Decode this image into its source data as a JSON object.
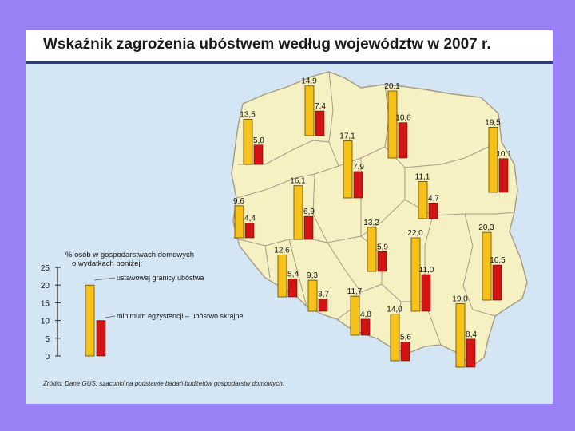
{
  "title": "Wskaźnik zagrożenia ubóstwem według województw w 2007 r.",
  "source": "Źródło: Dane GUS; szacunki na podstawie badań budżetów gospodarstw domowych.",
  "colors": {
    "background": "#9a80f5",
    "panel": "#d4e6f3",
    "map_fill": "#f6f1c2",
    "map_border": "#a89a86",
    "bar_yellow": "#f6c21a",
    "bar_red": "#d11515",
    "bar_outline": "#5a4400"
  },
  "chart_data": {
    "type": "bar",
    "legend": {
      "heading_line1": "% osób w gospodarstwach domowych",
      "heading_line2": "o wydatkach poniżej:",
      "axis_ticks": [
        "25",
        "20",
        "15",
        "10",
        "5",
        "0"
      ],
      "ylim": [
        0,
        25
      ],
      "sample_values": [
        20,
        10
      ],
      "series_labels": [
        "ustawowej granicy ubóstwa",
        "minimum egzystencji – ubóstwo skrajne"
      ]
    },
    "series": [
      {
        "name": "ustawowej granicy ubóstwa",
        "color": "yellow"
      },
      {
        "name": "minimum egzystencji – ubóstwo skrajne",
        "color": "red"
      }
    ],
    "regions": [
      {
        "values": [
          14.9,
          7.4
        ],
        "labels": [
          "14,9",
          "7,4"
        ]
      },
      {
        "values": [
          20.1,
          10.6
        ],
        "labels": [
          "20,1",
          "10,6"
        ]
      },
      {
        "values": [
          13.5,
          5.8
        ],
        "labels": [
          "13,5",
          "5,8"
        ]
      },
      {
        "values": [
          19.5,
          10.1
        ],
        "labels": [
          "19,5",
          "10,1"
        ]
      },
      {
        "values": [
          17.1,
          7.9
        ],
        "labels": [
          "17,1",
          "7,9"
        ]
      },
      {
        "values": [
          16.1,
          6.9
        ],
        "labels": [
          "16,1",
          "6,9"
        ]
      },
      {
        "values": [
          11.1,
          4.7
        ],
        "labels": [
          "11,1",
          "4,7"
        ]
      },
      {
        "values": [
          9.6,
          4.4
        ],
        "labels": [
          "9,6",
          "4,4"
        ]
      },
      {
        "values": [
          13.2,
          5.9
        ],
        "labels": [
          "13,2",
          "5,9"
        ]
      },
      {
        "values": [
          20.3,
          10.5
        ],
        "labels": [
          "20,3",
          "10,5"
        ]
      },
      {
        "values": [
          22.0,
          11.0
        ],
        "labels": [
          "22,0",
          "11,0"
        ]
      },
      {
        "values": [
          12.6,
          5.4
        ],
        "labels": [
          "12,6",
          "5,4"
        ]
      },
      {
        "values": [
          9.3,
          3.7
        ],
        "labels": [
          "9,3",
          "3,7"
        ]
      },
      {
        "values": [
          11.7,
          4.8
        ],
        "labels": [
          "11,7",
          "4,8"
        ]
      },
      {
        "values": [
          14.0,
          5.6
        ],
        "labels": [
          "14,0",
          "5,6"
        ]
      },
      {
        "values": [
          19.0,
          8.4
        ],
        "labels": [
          "19,0",
          "8,4"
        ]
      }
    ]
  }
}
